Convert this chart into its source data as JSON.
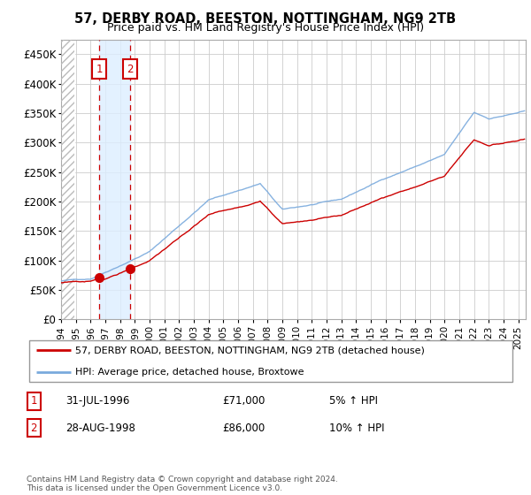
{
  "title": "57, DERBY ROAD, BEESTON, NOTTINGHAM, NG9 2TB",
  "subtitle": "Price paid vs. HM Land Registry's House Price Index (HPI)",
  "hpi_label": "HPI: Average price, detached house, Broxtowe",
  "price_label": "57, DERBY ROAD, BEESTON, NOTTINGHAM, NG9 2TB (detached house)",
  "legend_label_1": "31-JUL-1996",
  "legend_price_1": "£71,000",
  "legend_pct_1": "5% ↑ HPI",
  "legend_label_2": "28-AUG-1998",
  "legend_price_2": "£86,000",
  "legend_pct_2": "10% ↑ HPI",
  "sale1_year": 1996.58,
  "sale1_price": 71000,
  "sale2_year": 1998.66,
  "sale2_price": 86000,
  "yticks": [
    0,
    50000,
    100000,
    150000,
    200000,
    250000,
    300000,
    350000,
    400000,
    450000
  ],
  "ytick_labels": [
    "£0",
    "£50K",
    "£100K",
    "£150K",
    "£200K",
    "£250K",
    "£300K",
    "£350K",
    "£400K",
    "£450K"
  ],
  "xmin": 1994,
  "xmax": 2025.5,
  "ymin": 0,
  "ymax": 475000,
  "hatch_end": 1994.92,
  "price_color": "#cc0000",
  "hpi_color": "#7aaadd",
  "background_color": "#ffffff",
  "grid_color": "#cccccc",
  "sale_band_color": "#ddeeff",
  "footer": "Contains HM Land Registry data © Crown copyright and database right 2024.\nThis data is licensed under the Open Government Licence v3.0."
}
